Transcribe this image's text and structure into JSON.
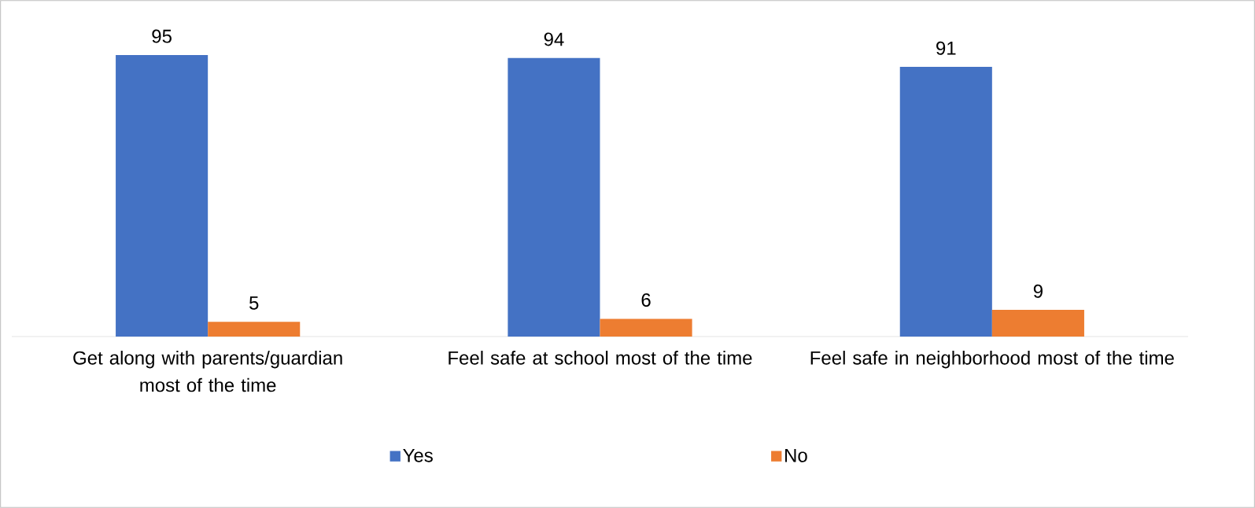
{
  "chart_data": {
    "type": "bar",
    "categories": [
      "Get along with parents/guardian most of the time",
      "Feel safe at school most of the time",
      "Feel safe in neighborhood most of the time"
    ],
    "series": [
      {
        "name": "Yes",
        "color": "#4472c4",
        "values": [
          95,
          94,
          91
        ]
      },
      {
        "name": "No",
        "color": "#ed7d31",
        "values": [
          5,
          6,
          9
        ]
      }
    ],
    "data_labels": true,
    "legend": "bottom"
  }
}
